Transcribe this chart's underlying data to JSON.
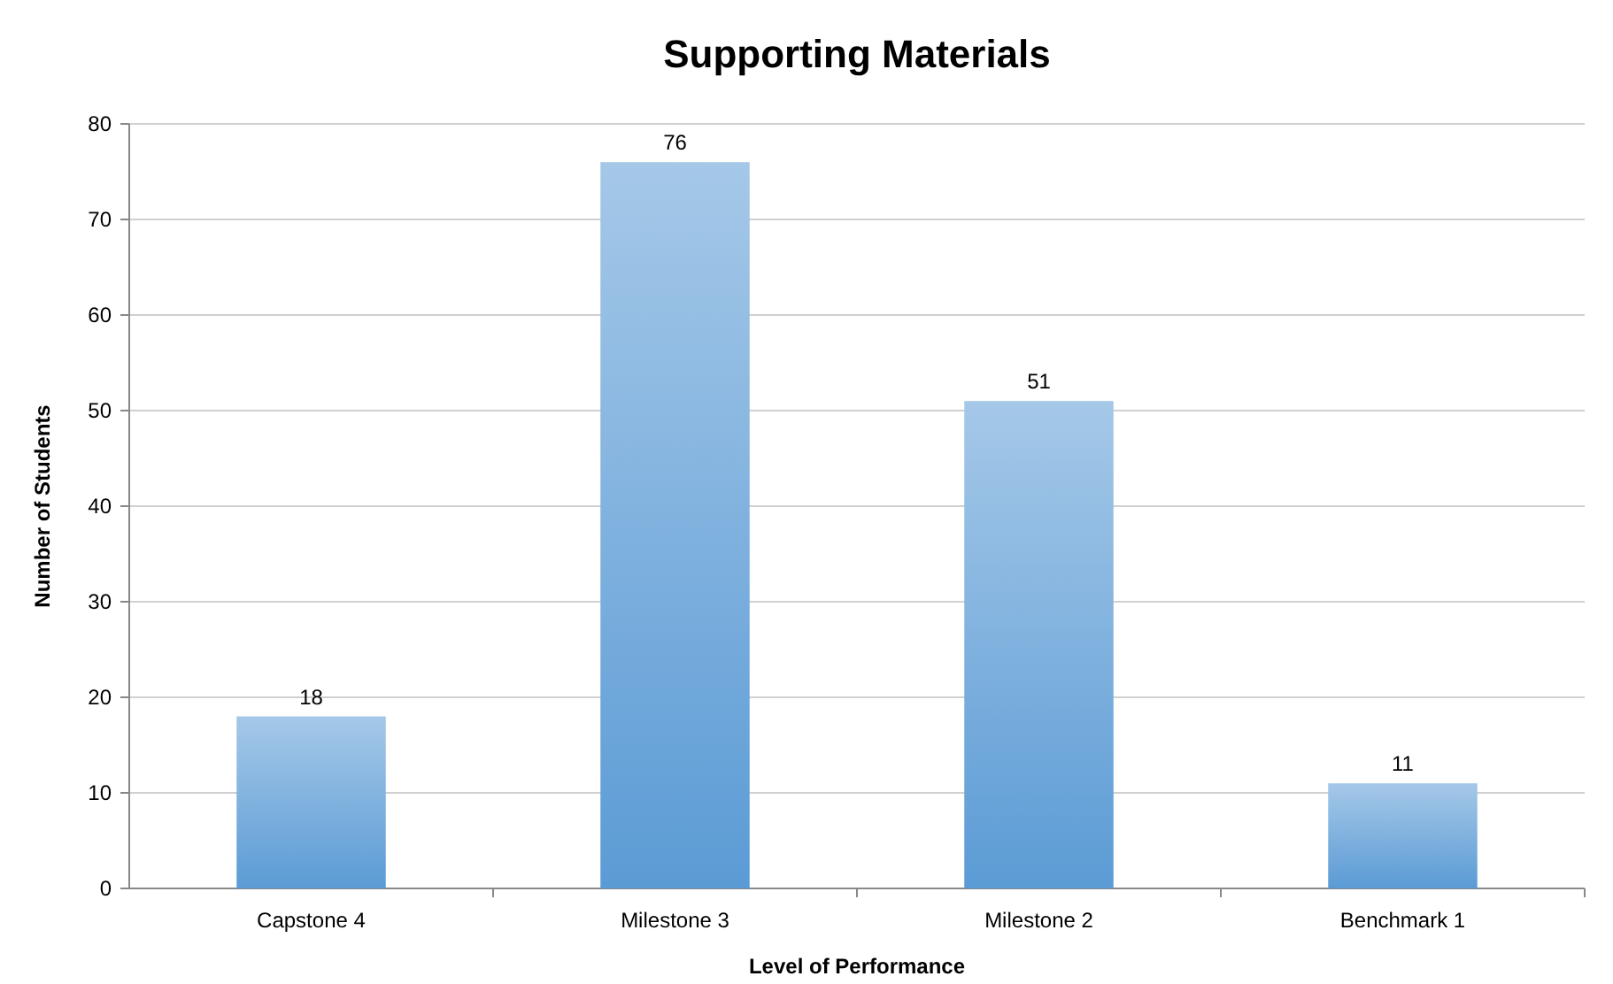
{
  "chart_data": {
    "type": "bar",
    "title": "Supporting Materials",
    "xlabel": "Level of Performance",
    "ylabel": "Number of Students",
    "categories": [
      "Capstone 4",
      "Milestone 3",
      "Milestone 2",
      "Benchmark 1"
    ],
    "values": [
      18,
      76,
      51,
      11
    ],
    "color": "#5b9bd5",
    "ylim": [
      0,
      80
    ],
    "yticks": [
      0,
      10,
      20,
      30,
      40,
      50,
      60,
      70,
      80
    ],
    "grid": "y",
    "data_labels": true
  }
}
